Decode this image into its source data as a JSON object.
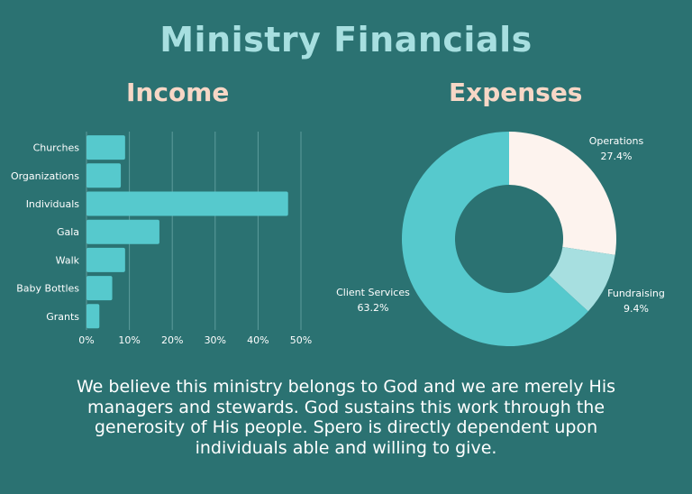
{
  "title": "Ministry Financials",
  "income": {
    "heading": "Income",
    "chart_data": {
      "type": "bar",
      "orientation": "horizontal",
      "categories": [
        "Churches",
        "Organizations",
        "Individuals",
        "Gala",
        "Walk",
        "Baby Bottles",
        "Grants"
      ],
      "values": [
        9,
        8,
        47,
        17,
        9,
        6,
        3
      ],
      "xlim": [
        0,
        50
      ],
      "xticks": [
        "0%",
        "10%",
        "20%",
        "30%",
        "40%",
        "50%"
      ],
      "grid": true,
      "colors": {
        "bar": "#56c9cd",
        "grid": "#5e9c9c"
      }
    }
  },
  "expenses": {
    "heading": "Expenses",
    "chart_data": {
      "type": "pie",
      "donut": true,
      "slices": [
        {
          "label": "Operations",
          "value": 27.4,
          "value_label": "27.4%",
          "color": "#fdf3ee"
        },
        {
          "label": "Fundraising",
          "value": 9.4,
          "value_label": "9.4%",
          "color": "#a7dfe0"
        },
        {
          "label": "Client Services",
          "value": 63.2,
          "value_label": "63.2%",
          "color": "#56c9cd"
        }
      ]
    }
  },
  "footer": "We believe this ministry belongs to God and we are merely His managers and stewards. God sustains this work through the generosity of His people. Spero is directly dependent upon individuals able and willing to give.",
  "colors": {
    "background": "#2b7272",
    "title": "#a7dfe0",
    "heading": "#f7d7c6"
  }
}
